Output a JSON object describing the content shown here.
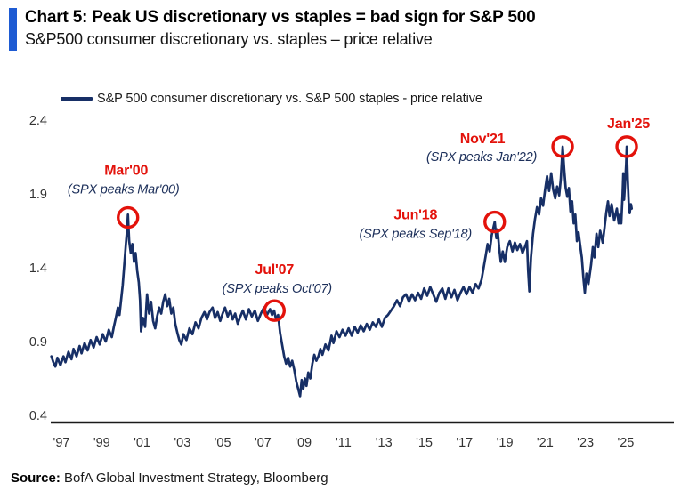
{
  "header": {
    "title": "Chart 5: Peak US discretionary vs staples = bad sign for S&P 500",
    "subtitle": "S&P500 consumer discretionary vs. staples – price relative",
    "accent_color": "#1e5bd3"
  },
  "legend": {
    "label": "S&P 500 consumer discretionary vs. S&P 500 staples - price relative"
  },
  "source": {
    "label": "Source:",
    "text": " BofA Global Investment Strategy, Bloomberg"
  },
  "chart_data": {
    "type": "line",
    "title": "S&P500 consumer discretionary vs. staples price relative",
    "xlabel": "",
    "ylabel": "",
    "grid": false,
    "legend_position": "top",
    "xlim": [
      1996.4,
      2025.8
    ],
    "ylim": [
      0.4,
      2.4
    ],
    "y_ticks": [
      2.4,
      1.9,
      1.4,
      0.9,
      0.4
    ],
    "x_ticks": [
      {
        "year": 1997,
        "label": "'97"
      },
      {
        "year": 1999,
        "label": "'99"
      },
      {
        "year": 2001,
        "label": "'01"
      },
      {
        "year": 2003,
        "label": "'03"
      },
      {
        "year": 2005,
        "label": "'05"
      },
      {
        "year": 2007,
        "label": "'07"
      },
      {
        "year": 2009,
        "label": "'09"
      },
      {
        "year": 2011,
        "label": "'11"
      },
      {
        "year": 2013,
        "label": "'13"
      },
      {
        "year": 2015,
        "label": "'15"
      },
      {
        "year": 2017,
        "label": "'17"
      },
      {
        "year": 2019,
        "label": "'19"
      },
      {
        "year": 2021,
        "label": "'21"
      },
      {
        "year": 2023,
        "label": "'23"
      },
      {
        "year": 2025,
        "label": "'25"
      }
    ],
    "annotation_color": "#e3120b",
    "annotations": [
      {
        "id": "mar00",
        "label": "Mar'00",
        "sub": "(SPX peaks Mar'00)",
        "year": 2000.3,
        "value": 1.74
      },
      {
        "id": "jul07",
        "label": "Jul'07",
        "sub": "(SPX peaks Oct'07)",
        "year": 2007.57,
        "value": 1.11
      },
      {
        "id": "jun18",
        "label": "Jun'18",
        "sub": "(SPX peaks Sep'18)",
        "year": 2018.5,
        "value": 1.71
      },
      {
        "id": "nov21",
        "label": "Nov'21",
        "sub": "(SPX peaks Jan'22)",
        "year": 2021.87,
        "value": 2.22
      },
      {
        "id": "jan25",
        "label": "Jan'25",
        "sub": null,
        "year": 2025.05,
        "value": 2.22
      }
    ],
    "series": [
      {
        "name": "S&P 500 consumer discretionary vs. S&P 500 staples - price relative",
        "color": "#172f66",
        "points": [
          [
            1996.5,
            0.8
          ],
          [
            1996.6,
            0.76
          ],
          [
            1996.7,
            0.73
          ],
          [
            1996.8,
            0.79
          ],
          [
            1996.95,
            0.74
          ],
          [
            1997.1,
            0.8
          ],
          [
            1997.2,
            0.76
          ],
          [
            1997.35,
            0.83
          ],
          [
            1997.5,
            0.78
          ],
          [
            1997.6,
            0.85
          ],
          [
            1997.75,
            0.8
          ],
          [
            1997.9,
            0.87
          ],
          [
            1998.0,
            0.82
          ],
          [
            1998.15,
            0.89
          ],
          [
            1998.3,
            0.84
          ],
          [
            1998.45,
            0.91
          ],
          [
            1998.6,
            0.86
          ],
          [
            1998.75,
            0.93
          ],
          [
            1998.9,
            0.88
          ],
          [
            1999.05,
            0.95
          ],
          [
            1999.2,
            0.9
          ],
          [
            1999.35,
            0.98
          ],
          [
            1999.5,
            0.93
          ],
          [
            1999.6,
            1.0
          ],
          [
            1999.7,
            1.06
          ],
          [
            1999.8,
            1.13
          ],
          [
            1999.88,
            1.08
          ],
          [
            1999.96,
            1.18
          ],
          [
            2000.04,
            1.28
          ],
          [
            2000.12,
            1.42
          ],
          [
            2000.2,
            1.56
          ],
          [
            2000.26,
            1.66
          ],
          [
            2000.3,
            1.76
          ],
          [
            2000.36,
            1.58
          ],
          [
            2000.44,
            1.5
          ],
          [
            2000.52,
            1.56
          ],
          [
            2000.6,
            1.44
          ],
          [
            2000.68,
            1.5
          ],
          [
            2000.76,
            1.38
          ],
          [
            2000.84,
            1.3
          ],
          [
            2000.9,
            1.18
          ],
          [
            2000.95,
            0.97
          ],
          [
            2001.05,
            1.06
          ],
          [
            2001.15,
            1.0
          ],
          [
            2001.25,
            1.22
          ],
          [
            2001.35,
            1.09
          ],
          [
            2001.45,
            1.17
          ],
          [
            2001.55,
            1.04
          ],
          [
            2001.65,
            0.99
          ],
          [
            2001.75,
            1.07
          ],
          [
            2001.85,
            1.13
          ],
          [
            2001.95,
            1.09
          ],
          [
            2002.05,
            1.17
          ],
          [
            2002.15,
            1.22
          ],
          [
            2002.25,
            1.14
          ],
          [
            2002.35,
            1.19
          ],
          [
            2002.45,
            1.09
          ],
          [
            2002.55,
            1.13
          ],
          [
            2002.65,
            1.02
          ],
          [
            2002.75,
            0.96
          ],
          [
            2002.85,
            0.91
          ],
          [
            2002.95,
            0.88
          ],
          [
            2003.05,
            0.95
          ],
          [
            2003.2,
            0.91
          ],
          [
            2003.35,
            0.99
          ],
          [
            2003.5,
            0.95
          ],
          [
            2003.65,
            1.03
          ],
          [
            2003.8,
            0.99
          ],
          [
            2003.95,
            1.06
          ],
          [
            2004.1,
            1.1
          ],
          [
            2004.22,
            1.05
          ],
          [
            2004.35,
            1.1
          ],
          [
            2004.5,
            1.13
          ],
          [
            2004.62,
            1.06
          ],
          [
            2004.75,
            1.1
          ],
          [
            2004.88,
            1.04
          ],
          [
            2005.0,
            1.09
          ],
          [
            2005.12,
            1.13
          ],
          [
            2005.25,
            1.07
          ],
          [
            2005.38,
            1.11
          ],
          [
            2005.5,
            1.05
          ],
          [
            2005.62,
            1.09
          ],
          [
            2005.75,
            1.02
          ],
          [
            2005.88,
            1.07
          ],
          [
            2006.0,
            1.11
          ],
          [
            2006.15,
            1.05
          ],
          [
            2006.3,
            1.12
          ],
          [
            2006.45,
            1.07
          ],
          [
            2006.6,
            1.11
          ],
          [
            2006.75,
            1.04
          ],
          [
            2006.9,
            1.09
          ],
          [
            2007.05,
            1.13
          ],
          [
            2007.2,
            1.08
          ],
          [
            2007.35,
            1.12
          ],
          [
            2007.45,
            1.08
          ],
          [
            2007.55,
            1.11
          ],
          [
            2007.65,
            1.05
          ],
          [
            2007.75,
            1.08
          ],
          [
            2007.85,
            0.96
          ],
          [
            2007.95,
            0.88
          ],
          [
            2008.05,
            0.8
          ],
          [
            2008.15,
            0.75
          ],
          [
            2008.25,
            0.79
          ],
          [
            2008.35,
            0.73
          ],
          [
            2008.45,
            0.77
          ],
          [
            2008.55,
            0.71
          ],
          [
            2008.65,
            0.63
          ],
          [
            2008.75,
            0.58
          ],
          [
            2008.84,
            0.53
          ],
          [
            2008.92,
            0.64
          ],
          [
            2009.0,
            0.58
          ],
          [
            2009.08,
            0.65
          ],
          [
            2009.16,
            0.6
          ],
          [
            2009.25,
            0.69
          ],
          [
            2009.35,
            0.65
          ],
          [
            2009.45,
            0.75
          ],
          [
            2009.55,
            0.81
          ],
          [
            2009.65,
            0.77
          ],
          [
            2009.75,
            0.8
          ],
          [
            2009.85,
            0.85
          ],
          [
            2009.95,
            0.81
          ],
          [
            2010.1,
            0.88
          ],
          [
            2010.25,
            0.84
          ],
          [
            2010.4,
            0.94
          ],
          [
            2010.5,
            0.89
          ],
          [
            2010.65,
            0.97
          ],
          [
            2010.8,
            0.93
          ],
          [
            2010.95,
            0.98
          ],
          [
            2011.1,
            0.94
          ],
          [
            2011.25,
            0.99
          ],
          [
            2011.4,
            0.94
          ],
          [
            2011.55,
            1.0
          ],
          [
            2011.7,
            0.96
          ],
          [
            2011.85,
            1.01
          ],
          [
            2012.0,
            0.97
          ],
          [
            2012.15,
            1.02
          ],
          [
            2012.3,
            0.98
          ],
          [
            2012.45,
            1.03
          ],
          [
            2012.6,
            1.0
          ],
          [
            2012.75,
            1.05
          ],
          [
            2012.9,
            1.0
          ],
          [
            2013.05,
            1.06
          ],
          [
            2013.2,
            1.08
          ],
          [
            2013.35,
            1.11
          ],
          [
            2013.5,
            1.14
          ],
          [
            2013.65,
            1.18
          ],
          [
            2013.8,
            1.14
          ],
          [
            2013.95,
            1.2
          ],
          [
            2014.1,
            1.22
          ],
          [
            2014.25,
            1.17
          ],
          [
            2014.4,
            1.22
          ],
          [
            2014.55,
            1.18
          ],
          [
            2014.7,
            1.23
          ],
          [
            2014.85,
            1.19
          ],
          [
            2015.0,
            1.26
          ],
          [
            2015.15,
            1.21
          ],
          [
            2015.3,
            1.27
          ],
          [
            2015.45,
            1.22
          ],
          [
            2015.6,
            1.17
          ],
          [
            2015.75,
            1.23
          ],
          [
            2015.9,
            1.26
          ],
          [
            2016.05,
            1.19
          ],
          [
            2016.2,
            1.26
          ],
          [
            2016.35,
            1.2
          ],
          [
            2016.5,
            1.25
          ],
          [
            2016.65,
            1.18
          ],
          [
            2016.8,
            1.23
          ],
          [
            2016.95,
            1.27
          ],
          [
            2017.1,
            1.22
          ],
          [
            2017.25,
            1.27
          ],
          [
            2017.4,
            1.23
          ],
          [
            2017.55,
            1.29
          ],
          [
            2017.7,
            1.26
          ],
          [
            2017.85,
            1.32
          ],
          [
            2017.95,
            1.4
          ],
          [
            2018.05,
            1.48
          ],
          [
            2018.15,
            1.56
          ],
          [
            2018.25,
            1.51
          ],
          [
            2018.35,
            1.62
          ],
          [
            2018.45,
            1.68
          ],
          [
            2018.5,
            1.71
          ],
          [
            2018.58,
            1.6
          ],
          [
            2018.64,
            1.66
          ],
          [
            2018.72,
            1.54
          ],
          [
            2018.8,
            1.44
          ],
          [
            2018.9,
            1.51
          ],
          [
            2019.0,
            1.44
          ],
          [
            2019.12,
            1.54
          ],
          [
            2019.25,
            1.58
          ],
          [
            2019.38,
            1.51
          ],
          [
            2019.5,
            1.57
          ],
          [
            2019.62,
            1.52
          ],
          [
            2019.75,
            1.56
          ],
          [
            2019.88,
            1.5
          ],
          [
            2020.0,
            1.54
          ],
          [
            2020.1,
            1.58
          ],
          [
            2020.16,
            1.38
          ],
          [
            2020.22,
            1.24
          ],
          [
            2020.3,
            1.47
          ],
          [
            2020.4,
            1.63
          ],
          [
            2020.5,
            1.73
          ],
          [
            2020.6,
            1.81
          ],
          [
            2020.7,
            1.76
          ],
          [
            2020.8,
            1.87
          ],
          [
            2020.9,
            1.82
          ],
          [
            2021.0,
            1.93
          ],
          [
            2021.1,
            2.02
          ],
          [
            2021.2,
            1.92
          ],
          [
            2021.3,
            2.04
          ],
          [
            2021.4,
            1.93
          ],
          [
            2021.5,
            1.87
          ],
          [
            2021.6,
            1.95
          ],
          [
            2021.7,
            1.89
          ],
          [
            2021.78,
            2.0
          ],
          [
            2021.87,
            2.22
          ],
          [
            2021.95,
            2.06
          ],
          [
            2022.02,
            1.94
          ],
          [
            2022.1,
            1.88
          ],
          [
            2022.18,
            1.94
          ],
          [
            2022.26,
            1.78
          ],
          [
            2022.34,
            1.85
          ],
          [
            2022.42,
            1.7
          ],
          [
            2022.5,
            1.76
          ],
          [
            2022.58,
            1.58
          ],
          [
            2022.66,
            1.64
          ],
          [
            2022.74,
            1.55
          ],
          [
            2022.82,
            1.47
          ],
          [
            2022.9,
            1.33
          ],
          [
            2022.97,
            1.23
          ],
          [
            2023.05,
            1.36
          ],
          [
            2023.15,
            1.29
          ],
          [
            2023.28,
            1.42
          ],
          [
            2023.37,
            1.54
          ],
          [
            2023.45,
            1.47
          ],
          [
            2023.55,
            1.63
          ],
          [
            2023.64,
            1.54
          ],
          [
            2023.73,
            1.65
          ],
          [
            2023.86,
            1.57
          ],
          [
            2023.95,
            1.67
          ],
          [
            2024.03,
            1.77
          ],
          [
            2024.12,
            1.85
          ],
          [
            2024.2,
            1.75
          ],
          [
            2024.3,
            1.83
          ],
          [
            2024.43,
            1.72
          ],
          [
            2024.56,
            1.8
          ],
          [
            2024.65,
            1.7
          ],
          [
            2024.72,
            1.76
          ],
          [
            2024.78,
            1.7
          ],
          [
            2024.84,
            1.88
          ],
          [
            2024.88,
            2.04
          ],
          [
            2024.92,
            1.86
          ],
          [
            2024.97,
            1.97
          ],
          [
            2025.02,
            2.1
          ],
          [
            2025.05,
            2.22
          ],
          [
            2025.1,
            2.0
          ],
          [
            2025.15,
            1.84
          ],
          [
            2025.2,
            1.77
          ],
          [
            2025.26,
            1.83
          ],
          [
            2025.3,
            1.8
          ]
        ]
      }
    ]
  }
}
